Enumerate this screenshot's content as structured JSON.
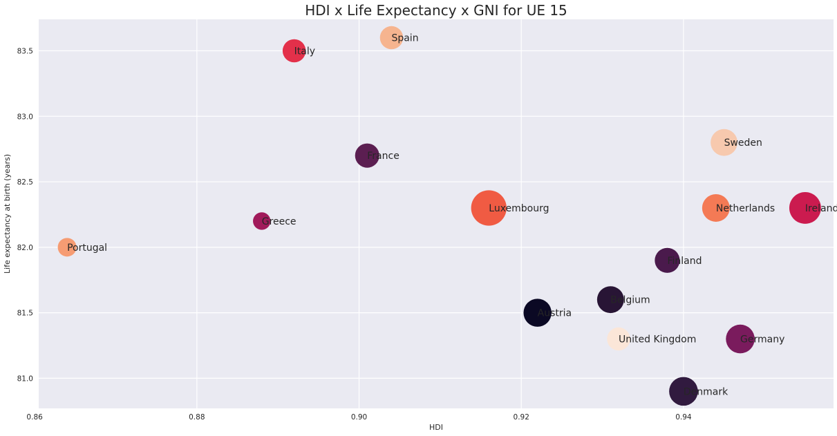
{
  "chart_data": {
    "type": "scatter",
    "title": "HDI x Life Expectancy x GNI for UE 15",
    "xlabel": "HDI",
    "ylabel": "Life expectancy at birth (years)",
    "xlim": [
      0.8605,
      0.9585
    ],
    "ylim": [
      80.77,
      83.74
    ],
    "xticks": [
      0.86,
      0.88,
      0.9,
      0.92,
      0.94
    ],
    "xtick_labels": [
      "0.86",
      "0.88",
      "0.90",
      "0.92",
      "0.94"
    ],
    "yticks": [
      81.0,
      81.5,
      82.0,
      82.5,
      83.0,
      83.5
    ],
    "ytick_labels": [
      "81.0",
      "81.5",
      "82.0",
      "82.5",
      "83.0",
      "83.5"
    ],
    "grid": true,
    "points": [
      {
        "label": "Spain",
        "x": 0.904,
        "y": 83.6,
        "color": "#f6b48f",
        "size": 0.62
      },
      {
        "label": "Italy",
        "x": 0.892,
        "y": 83.5,
        "color": "#e3304a",
        "size": 0.62
      },
      {
        "label": "Sweden",
        "x": 0.945,
        "y": 82.8,
        "color": "#f7c9ae",
        "size": 0.72
      },
      {
        "label": "France",
        "x": 0.901,
        "y": 82.7,
        "color": "#5b1e51",
        "size": 0.65
      },
      {
        "label": "Luxembourg",
        "x": 0.916,
        "y": 82.3,
        "color": "#f05b43",
        "size": 0.95
      },
      {
        "label": "Netherlands",
        "x": 0.944,
        "y": 82.3,
        "color": "#f47a55",
        "size": 0.74
      },
      {
        "label": "Ireland",
        "x": 0.955,
        "y": 82.3,
        "color": "#cb1b4f",
        "size": 0.85
      },
      {
        "label": "Greece",
        "x": 0.888,
        "y": 82.2,
        "color": "#a11a5b",
        "size": 0.47
      },
      {
        "label": "Portugal",
        "x": 0.864,
        "y": 82.0,
        "color": "#f69c73",
        "size": 0.5
      },
      {
        "label": "Finland",
        "x": 0.938,
        "y": 81.9,
        "color": "#4a1a4c",
        "size": 0.67
      },
      {
        "label": "Belgium",
        "x": 0.931,
        "y": 81.6,
        "color": "#281535",
        "size": 0.72
      },
      {
        "label": "Austria",
        "x": 0.922,
        "y": 81.5,
        "color": "#0b0924",
        "size": 0.75
      },
      {
        "label": "United Kingdom",
        "x": 0.932,
        "y": 81.3,
        "color": "#fbe6d8",
        "size": 0.62
      },
      {
        "label": "Germany",
        "x": 0.947,
        "y": 81.3,
        "color": "#7a1b5d",
        "size": 0.77
      },
      {
        "label": "Denmark",
        "x": 0.94,
        "y": 80.9,
        "color": "#311a3f",
        "size": 0.77
      }
    ]
  }
}
